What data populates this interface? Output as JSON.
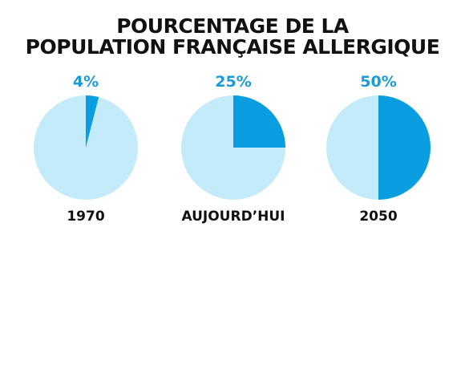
{
  "chart_data": {
    "type": "pie",
    "title": "POURCENTAGE DE LA POPULATION FRANÇAISE ALLERGIQUE",
    "title_lines": [
      "POURCENTAGE DE LA",
      "POPULATION FRANÇAISE ALLERGIQUE"
    ],
    "categories": [
      "1970",
      "AUJOURD’HUI",
      "2050"
    ],
    "values": [
      4,
      25,
      50
    ],
    "value_labels": [
      "4%",
      "25%",
      "50%"
    ],
    "unit": "%",
    "colors": {
      "highlight": "#0a9de0",
      "base": "#c4ebfa",
      "label": "#1a9bd7",
      "text": "#111111"
    }
  }
}
